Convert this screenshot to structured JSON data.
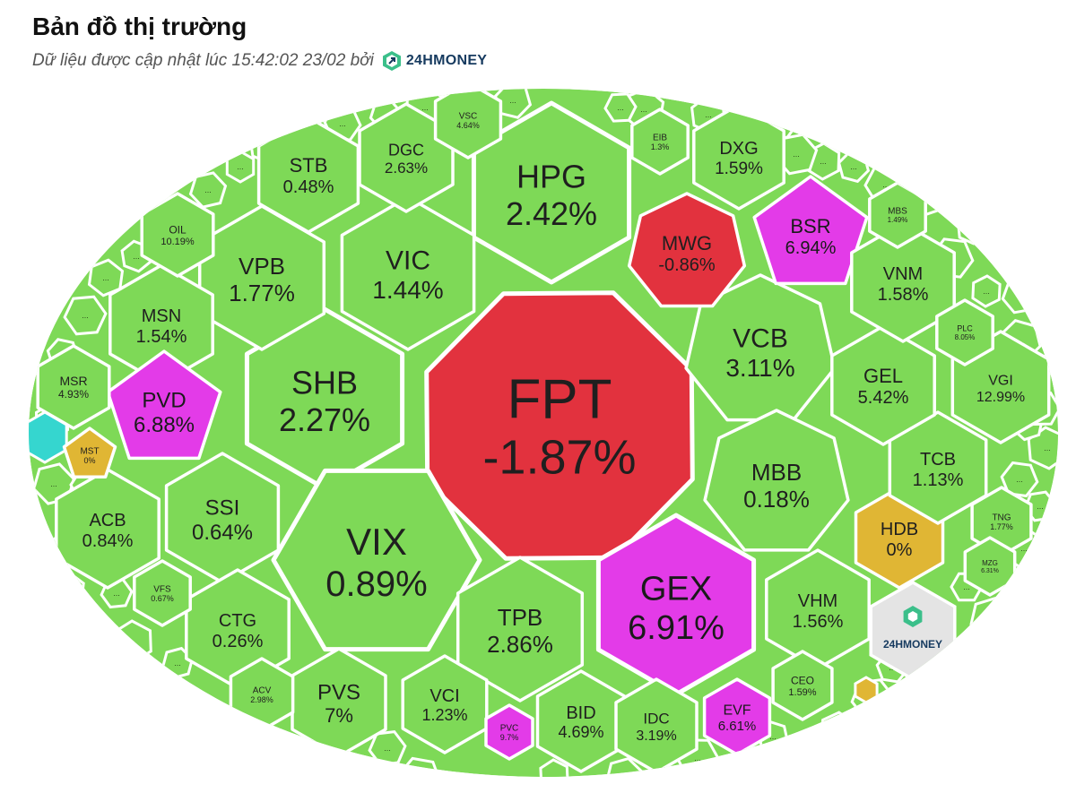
{
  "header": {
    "title": "Bản đồ thị trường",
    "subtitle": "Dữ liệu được cập nhật lúc 15:42:02 23/02 bởi",
    "brand": "24HMONEY"
  },
  "watermark": "24HMONEY",
  "colors": {
    "up": "#7ed957",
    "down": "#e2323e",
    "ceiling": "#e33be8",
    "flat": "#e0b634",
    "floor": "#35d6cf",
    "border": "#ffffff",
    "brand": "#163a5f"
  },
  "more_label": "...",
  "chart_data": {
    "type": "voronoi-treemap",
    "cells": [
      {
        "symbol": "FPT",
        "change": "-1.87%",
        "status": "down"
      },
      {
        "symbol": "HPG",
        "change": "2.42%",
        "status": "up"
      },
      {
        "symbol": "SHB",
        "change": "2.27%",
        "status": "up"
      },
      {
        "symbol": "VIX",
        "change": "0.89%",
        "status": "up"
      },
      {
        "symbol": "GEX",
        "change": "6.91%",
        "status": "ceiling"
      },
      {
        "symbol": "VCB",
        "change": "3.11%",
        "status": "up"
      },
      {
        "symbol": "VIC",
        "change": "1.44%",
        "status": "up"
      },
      {
        "symbol": "VPB",
        "change": "1.77%",
        "status": "up"
      },
      {
        "symbol": "MBB",
        "change": "0.18%",
        "status": "up"
      },
      {
        "symbol": "TPB",
        "change": "2.86%",
        "status": "up"
      },
      {
        "symbol": "MWG",
        "change": "-0.86%",
        "status": "down"
      },
      {
        "symbol": "BSR",
        "change": "6.94%",
        "status": "ceiling"
      },
      {
        "symbol": "STB",
        "change": "0.48%",
        "status": "up"
      },
      {
        "symbol": "DGC",
        "change": "2.63%",
        "status": "up"
      },
      {
        "symbol": "DXG",
        "change": "1.59%",
        "status": "up"
      },
      {
        "symbol": "MSN",
        "change": "1.54%",
        "status": "up"
      },
      {
        "symbol": "PVD",
        "change": "6.88%",
        "status": "ceiling"
      },
      {
        "symbol": "SSI",
        "change": "0.64%",
        "status": "up"
      },
      {
        "symbol": "ACB",
        "change": "0.84%",
        "status": "up"
      },
      {
        "symbol": "CTG",
        "change": "0.26%",
        "status": "up"
      },
      {
        "symbol": "PVS",
        "change": "7%",
        "status": "up"
      },
      {
        "symbol": "VCI",
        "change": "1.23%",
        "status": "up"
      },
      {
        "symbol": "BID",
        "change": "4.69%",
        "status": "up"
      },
      {
        "symbol": "IDC",
        "change": "3.19%",
        "status": "up"
      },
      {
        "symbol": "VHM",
        "change": "1.56%",
        "status": "up"
      },
      {
        "symbol": "HDB",
        "change": "0%",
        "status": "flat"
      },
      {
        "symbol": "TCB",
        "change": "1.13%",
        "status": "up"
      },
      {
        "symbol": "GEL",
        "change": "5.42%",
        "status": "up"
      },
      {
        "symbol": "VNM",
        "change": "1.58%",
        "status": "up"
      },
      {
        "symbol": "VGI",
        "change": "12.99%",
        "status": "up"
      },
      {
        "symbol": "EVF",
        "change": "6.61%",
        "status": "ceiling"
      },
      {
        "symbol": "CEO",
        "change": "1.59%",
        "status": "up"
      },
      {
        "symbol": "PVC",
        "change": "9.7%",
        "status": "ceiling"
      },
      {
        "symbol": "ACV",
        "change": "2.98%",
        "status": "up"
      },
      {
        "symbol": "VFS",
        "change": "0.67%",
        "status": "up"
      },
      {
        "symbol": "MSR",
        "change": "4.93%",
        "status": "up"
      },
      {
        "symbol": "MST",
        "change": "0%",
        "status": "flat"
      },
      {
        "symbol": "OIL",
        "change": "10.19%",
        "status": "up"
      },
      {
        "symbol": "VSC",
        "change": "4.64%",
        "status": "up"
      },
      {
        "symbol": "EIB",
        "change": "1.3%",
        "status": "up"
      },
      {
        "symbol": "MBS",
        "change": "1.49%",
        "status": "up"
      },
      {
        "symbol": "PLC",
        "change": "8.05%",
        "status": "up"
      },
      {
        "symbol": "TNG",
        "change": "1.77%",
        "status": "up"
      },
      {
        "symbol": "MZG",
        "change": "6.31%",
        "status": "up"
      }
    ]
  }
}
